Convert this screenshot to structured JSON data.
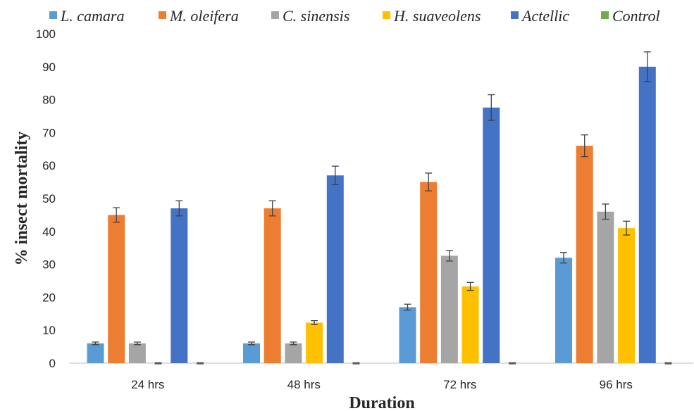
{
  "chart_data": {
    "type": "bar",
    "categories": [
      "24 hrs",
      "48 hrs",
      "72 hrs",
      "96 hrs"
    ],
    "series": [
      {
        "name": "L. camara",
        "color": "#5B9BD5",
        "values": [
          6,
          6,
          17,
          32
        ],
        "errors": [
          0.4,
          0.4,
          0.9,
          1.6
        ]
      },
      {
        "name": "M. oleifera",
        "color": "#ED7D31",
        "values": [
          45,
          47,
          55,
          66
        ],
        "errors": [
          2.2,
          2.3,
          2.7,
          3.3
        ]
      },
      {
        "name": "C. sinensis",
        "color": "#A5A5A5",
        "values": [
          6,
          6,
          32.6,
          46
        ],
        "errors": [
          0.4,
          0.4,
          1.6,
          2.3
        ]
      },
      {
        "name": "H. suaveolens",
        "color": "#FFC000",
        "values": [
          0,
          12.3,
          23.3,
          41
        ],
        "errors": [
          0,
          0.6,
          1.2,
          2.1
        ]
      },
      {
        "name": "Actellic",
        "color": "#4472C4",
        "values": [
          47,
          57,
          77.6,
          90
        ],
        "errors": [
          2.3,
          2.8,
          3.9,
          4.5
        ]
      },
      {
        "name": "Control",
        "color": "#70AD47",
        "values": [
          0,
          0,
          0,
          0
        ],
        "errors": [
          0,
          0,
          0,
          0
        ]
      }
    ],
    "yticks": [
      "0",
      "10",
      "20",
      "30",
      "40",
      "50",
      "60",
      "70",
      "80",
      "90",
      "100"
    ],
    "ylim": [
      0,
      100
    ],
    "xlabel": "Duration",
    "ylabel": "% insect mortality",
    "grid": false,
    "legend_position": "top"
  }
}
